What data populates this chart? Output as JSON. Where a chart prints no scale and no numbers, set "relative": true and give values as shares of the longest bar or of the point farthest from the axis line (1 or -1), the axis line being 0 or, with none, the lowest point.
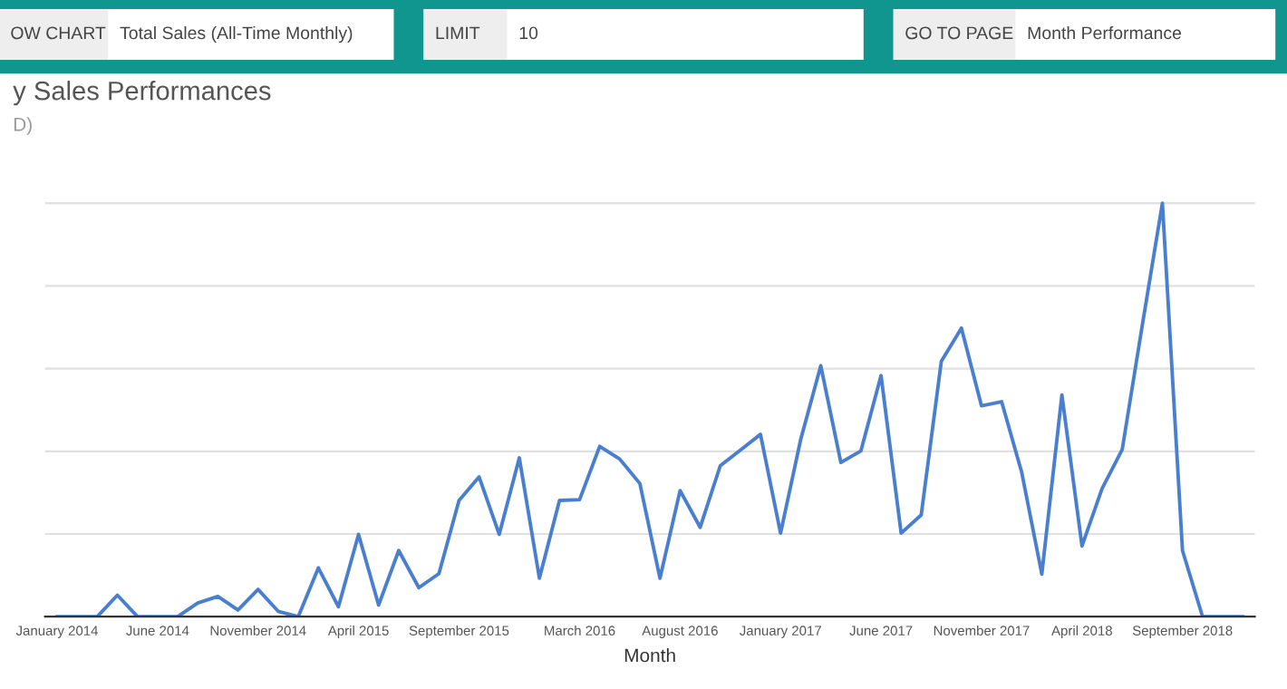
{
  "chart_data": {
    "type": "line",
    "title": "y Sales Performances",
    "subtitle": "D)",
    "xlabel": "Month",
    "relative": true,
    "grid": "y",
    "marker": "none",
    "line_style": "solid",
    "annotations": [
      "OW CHART",
      "Total Sales (All-Time Monthly)",
      "LIMIT",
      "10",
      "GO TO PAGE",
      "Month Performance"
    ],
    "categories": [
      "January 2014",
      null,
      null,
      null,
      null,
      "June 2014",
      null,
      null,
      null,
      null,
      "November 2014",
      null,
      null,
      null,
      null,
      "April 2015",
      null,
      null,
      null,
      null,
      "September 2015",
      null,
      null,
      null,
      null,
      null,
      "March 2016",
      null,
      null,
      null,
      null,
      "August 2016",
      null,
      null,
      null,
      null,
      "January 2017",
      null,
      null,
      null,
      null,
      "June 2017",
      null,
      null,
      null,
      null,
      "November 2017",
      null,
      null,
      null,
      null,
      "April 2018",
      null,
      null,
      null,
      null,
      "September 2018",
      null,
      null,
      null
    ],
    "series": [
      {
        "color": "#4a7fd0",
        "values": [
          0,
          0,
          0,
          0.052,
          0,
          0,
          0,
          0.033,
          0.049,
          0.016,
          0.066,
          0.013,
          0,
          0.118,
          0.024,
          0.199,
          0.028,
          0.16,
          0.07,
          0.104,
          0.281,
          0.338,
          0.199,
          0.384,
          0.093,
          0.281,
          0.283,
          0.412,
          0.381,
          0.322,
          0.093,
          0.305,
          0.216,
          0.365,
          0.403,
          0.441,
          0.202,
          0.428,
          0.607,
          0.373,
          0.401,
          0.583,
          0.202,
          0.246,
          0.618,
          0.698,
          0.51,
          0.52,
          0.349,
          0.103,
          0.536,
          0.171,
          0.31,
          0.404,
          0.705,
          1,
          0.16,
          0,
          0,
          0
        ]
      }
    ]
  }
}
